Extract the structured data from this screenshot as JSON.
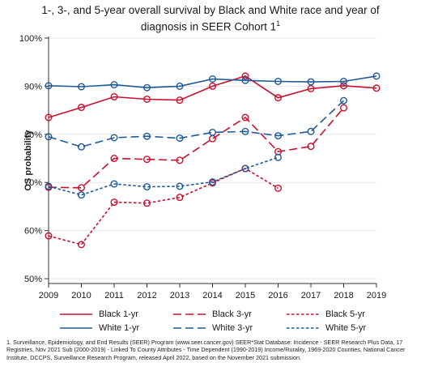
{
  "title_line1": "1-, 3-, and 5-year overall survival by Black and White race and  year of",
  "title_line2": "diagnosis in SEER Cohort 1",
  "title_sup": "1",
  "footnote": "1. Surveillance, Epidemiology, and End Results (SEER) Program (www.seer.cancer.gov) SEER*Stat Database: Incidence - SEER Research Plus Data, 17 Registries, Nov 2021 Sub (2000-2019) - Linked To County Attributes - Time Dependent (1990-2019) Income/Rurality, 1969-2020 Counties, National Cancer Institute, DCCPS, Surveillance Research Program, released April 2022, based on the November 2021 submission.",
  "colors": {
    "black": "#c8102e",
    "white": "#1f5a96"
  },
  "chart_data": {
    "type": "line",
    "title": "1-, 3-, and 5-year overall survival by Black and White race and  year of diagnosis in SEER Cohort 1",
    "xlabel": "",
    "ylabel": "OS probability",
    "ylim": [
      0.49,
      1.0
    ],
    "xlim": [
      2009,
      2019
    ],
    "x_ticks": [
      "2009",
      "2010",
      "2011",
      "2012",
      "2013",
      "2014",
      "2015",
      "2016",
      "2017",
      "2018",
      "2019"
    ],
    "y_ticks": [
      {
        "value": 0.5,
        "label": "50%"
      },
      {
        "value": 0.6,
        "label": "60%"
      },
      {
        "value": 0.7,
        "label": "70%"
      },
      {
        "value": 0.8,
        "label": "80%"
      },
      {
        "value": 0.9,
        "label": "90%"
      },
      {
        "value": 1.0,
        "label": "100%"
      }
    ],
    "grid": true,
    "legend_position": "bottom",
    "series": [
      {
        "name": "Black 1-yr",
        "color": "#c8102e",
        "dash": "solid",
        "x": [
          2009,
          2010,
          2011,
          2012,
          2013,
          2014,
          2015,
          2016,
          2017,
          2018,
          2019
        ],
        "values": [
          0.835,
          0.856,
          0.878,
          0.873,
          0.871,
          0.9,
          0.921,
          0.876,
          0.895,
          0.901,
          0.896
        ]
      },
      {
        "name": "White 1-yr",
        "color": "#1f5a96",
        "dash": "solid",
        "x": [
          2009,
          2010,
          2011,
          2012,
          2013,
          2014,
          2015,
          2016,
          2017,
          2018,
          2019
        ],
        "values": [
          0.901,
          0.899,
          0.903,
          0.897,
          0.9,
          0.915,
          0.912,
          0.91,
          0.909,
          0.91,
          0.921
        ]
      },
      {
        "name": "Black 3-yr",
        "color": "#c8102e",
        "dash": "long",
        "x": [
          2009,
          2010,
          2011,
          2012,
          2013,
          2014,
          2015,
          2016,
          2017,
          2018
        ],
        "values": [
          0.69,
          0.689,
          0.75,
          0.748,
          0.746,
          0.791,
          0.835,
          0.764,
          0.775,
          0.855
        ]
      },
      {
        "name": "White 3-yr",
        "color": "#1f5a96",
        "dash": "long",
        "x": [
          2009,
          2010,
          2011,
          2012,
          2013,
          2014,
          2015,
          2016,
          2017,
          2018
        ],
        "values": [
          0.795,
          0.774,
          0.793,
          0.796,
          0.792,
          0.804,
          0.806,
          0.797,
          0.806,
          0.87
        ]
      },
      {
        "name": "Black 5-yr",
        "color": "#c8102e",
        "dash": "short",
        "x": [
          2009,
          2010,
          2011,
          2012,
          2013,
          2014,
          2015,
          2016
        ],
        "values": [
          0.589,
          0.571,
          0.659,
          0.657,
          0.669,
          0.699,
          0.729,
          0.688
        ]
      },
      {
        "name": "White 5-yr",
        "color": "#1f5a96",
        "dash": "short",
        "x": [
          2009,
          2010,
          2011,
          2012,
          2013,
          2014,
          2015,
          2016
        ],
        "values": [
          0.692,
          0.674,
          0.697,
          0.691,
          0.692,
          0.701,
          0.729,
          0.752
        ]
      }
    ],
    "legend": [
      [
        "Black 1-yr",
        "Black 3-yr",
        "Black 5-yr"
      ],
      [
        "White 1-yr",
        "White 3-yr",
        "White 5-yr"
      ]
    ]
  }
}
